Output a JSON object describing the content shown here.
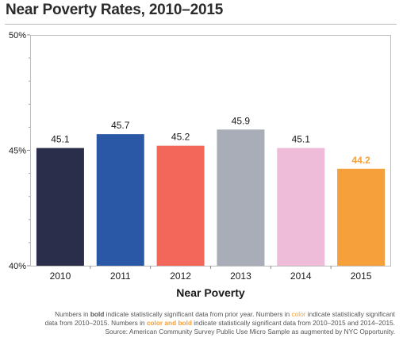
{
  "title": "Near Poverty Rates, 2010–2015",
  "chart_data": {
    "type": "bar",
    "title": "Near Poverty Rates, 2010–2015",
    "xlabel": "Near Poverty",
    "ylabel": "",
    "categories": [
      "2010",
      "2011",
      "2012",
      "2013",
      "2014",
      "2015"
    ],
    "values": [
      45.1,
      45.7,
      45.2,
      45.9,
      45.1,
      44.2
    ],
    "value_labels": [
      "45.1",
      "45.7",
      "45.2",
      "45.9",
      "45.1",
      "44.2"
    ],
    "bar_colors": [
      "#2b2e4a",
      "#2b58a6",
      "#f2675a",
      "#a9adb7",
      "#eebcd9",
      "#f5a03a"
    ],
    "label_colors": [
      "#1a1a1a",
      "#1a1a1a",
      "#1a1a1a",
      "#1a1a1a",
      "#1a1a1a",
      "#f5a03a"
    ],
    "label_bold": [
      false,
      false,
      false,
      false,
      false,
      true
    ],
    "ylim": [
      40,
      50
    ],
    "y_ticks": [
      {
        "value": 40,
        "label": "40%"
      },
      {
        "value": 45,
        "label": "45%"
      },
      {
        "value": 50,
        "label": "50%"
      }
    ],
    "grid": false
  },
  "footnote": {
    "p1": "Numbers in ",
    "w_bold": "bold",
    "p2": " indicate statistically significant data from prior year. Numbers in ",
    "w_color": "color",
    "p3": " indicate statistically significant",
    "p4": "data from 2010–2015. Numbers in ",
    "w_colorbold": "color and bold",
    "p5": " indicate statistically significant data from 2010–2015 and 2014–2015.",
    "source": "Source: American Community Survey Public Use Micro Sample as augmented by NYC Opportunity."
  }
}
